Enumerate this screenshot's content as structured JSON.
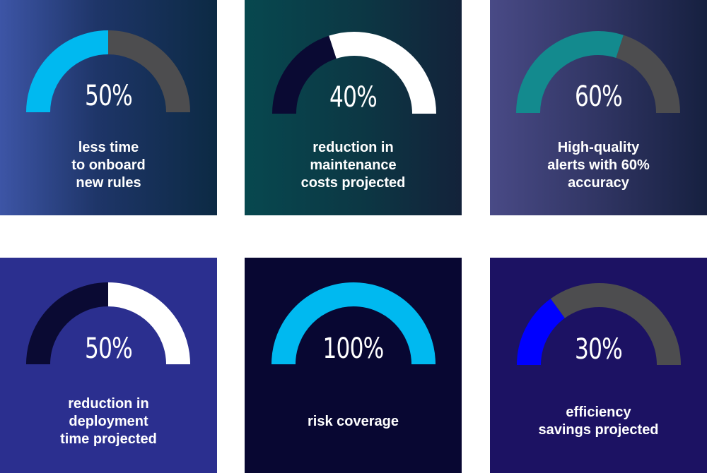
{
  "cards": [
    {
      "percent_label": "50%",
      "value": 50,
      "fill_color": "#00B9F0",
      "track_color": "#4D4D4F",
      "lines": [
        "less time",
        "to onboard",
        "new rules"
      ]
    },
    {
      "percent_label": "40%",
      "value": 40,
      "fill_color": "#0A0A33",
      "track_color": "#FFFFFF",
      "lines": [
        "reduction in",
        "maintenance",
        "costs projected"
      ]
    },
    {
      "percent_label": "60%",
      "value": 60,
      "fill_color": "#138A8E",
      "track_color": "#4D4D4F",
      "lines": [
        "High-quality",
        "alerts with 60%",
        "accuracy"
      ]
    },
    {
      "percent_label": "50%",
      "value": 50,
      "fill_color": "#0A0A33",
      "track_color": "#FFFFFF",
      "lines": [
        "reduction in",
        "deployment",
        "time projected"
      ]
    },
    {
      "percent_label": "100%",
      "value": 100,
      "fill_color": "#00B9F0",
      "track_color": "#4D4D4F",
      "lines": [
        "risk coverage"
      ]
    },
    {
      "percent_label": "30%",
      "value": 30,
      "fill_color": "#0000FF",
      "track_color": "#4D4D4F",
      "lines": [
        "efficiency",
        "savings projected"
      ]
    }
  ]
}
